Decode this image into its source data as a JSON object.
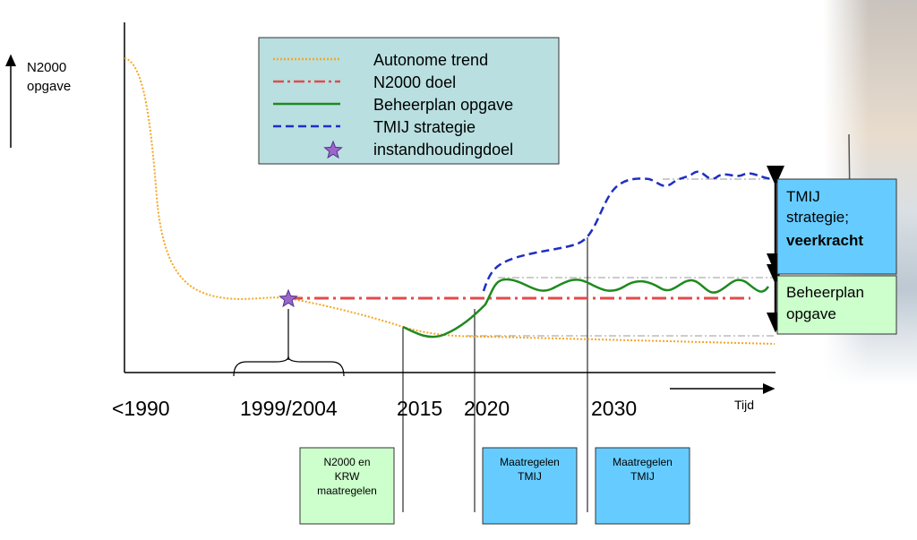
{
  "y_axis_label": [
    "N2000",
    "opgave"
  ],
  "legend": {
    "items": [
      "Autonome trend",
      "N2000 doel",
      "Beheerplan opgave",
      "TMIJ strategie",
      "instandhoudingdoel"
    ]
  },
  "x_labels": [
    "<1990",
    "1999/2004",
    "2015",
    "2020",
    "2030"
  ],
  "time_label": "Tijd",
  "side_boxes": {
    "tmij": [
      "TMIJ",
      "strategie;",
      "veerkracht"
    ],
    "beheerplan": [
      "Beheerplan",
      "opgave"
    ]
  },
  "bottom_boxes": [
    [
      "N2000 en",
      "KRW",
      "maatregelen"
    ],
    [
      "Maatregelen",
      "TMIJ"
    ],
    [
      "Maatregelen",
      "TMIJ"
    ]
  ]
}
